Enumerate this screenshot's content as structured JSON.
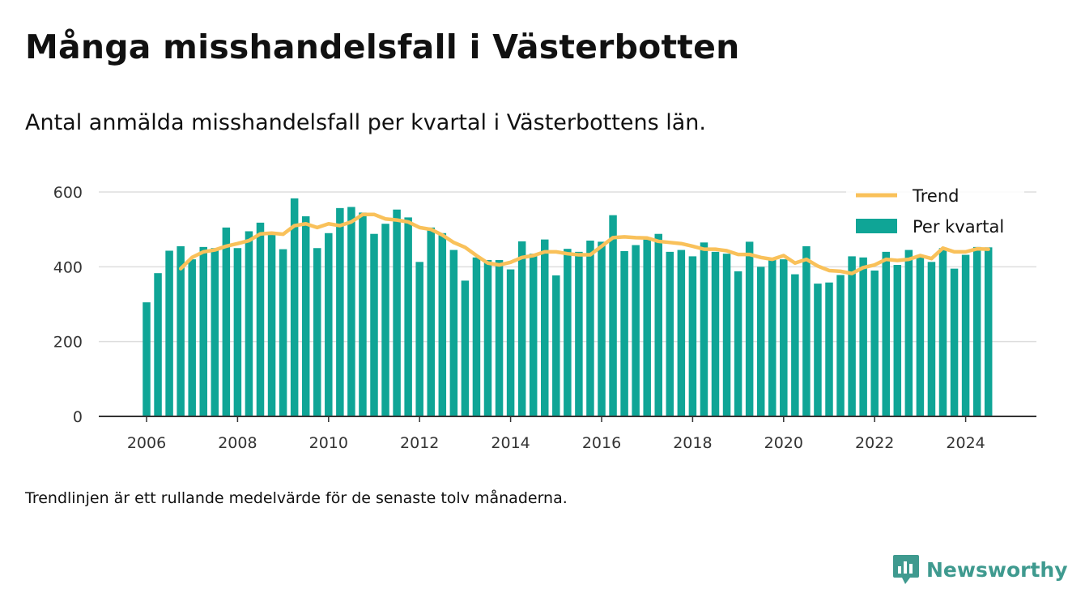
{
  "header": {
    "title": "Många misshandelsfall i Västerbotten",
    "subtitle": "Antal anmälda misshandelsfall per kvartal i Västerbottens län."
  },
  "footer": {
    "note": "Trendlinjen är ett rullande medelvärde för de senaste tolv månaderna."
  },
  "brand": {
    "name": "Newsworthy",
    "icon": "newsworthy-logo-icon",
    "color": "#3f9a8f"
  },
  "colors": {
    "bar": "#0fa596",
    "trend": "#f9c15a",
    "grid": "#dddddd",
    "axis": "#333333"
  },
  "chart_data": {
    "type": "bar",
    "title": "Många misshandelsfall i Västerbotten",
    "subtitle": "Antal anmälda misshandelsfall per kvartal i Västerbottens län.",
    "xlabel": "",
    "ylabel": "",
    "ylim": [
      0,
      600
    ],
    "yticks": [
      0,
      200,
      400,
      600
    ],
    "xticks": [
      "2006",
      "2008",
      "2010",
      "2012",
      "2014",
      "2016",
      "2018",
      "2020",
      "2022",
      "2024"
    ],
    "grid": true,
    "legend_position": "top-right",
    "categories": [
      "2006 Q1",
      "2006 Q2",
      "2006 Q3",
      "2006 Q4",
      "2007 Q1",
      "2007 Q2",
      "2007 Q3",
      "2007 Q4",
      "2008 Q1",
      "2008 Q2",
      "2008 Q3",
      "2008 Q4",
      "2009 Q1",
      "2009 Q2",
      "2009 Q3",
      "2009 Q4",
      "2010 Q1",
      "2010 Q2",
      "2010 Q3",
      "2010 Q4",
      "2011 Q1",
      "2011 Q2",
      "2011 Q3",
      "2011 Q4",
      "2012 Q1",
      "2012 Q2",
      "2012 Q3",
      "2012 Q4",
      "2013 Q1",
      "2013 Q2",
      "2013 Q3",
      "2013 Q4",
      "2014 Q1",
      "2014 Q2",
      "2014 Q3",
      "2014 Q4",
      "2015 Q1",
      "2015 Q2",
      "2015 Q3",
      "2015 Q4",
      "2016 Q1",
      "2016 Q2",
      "2016 Q3",
      "2016 Q4",
      "2017 Q1",
      "2017 Q2",
      "2017 Q3",
      "2017 Q4",
      "2018 Q1",
      "2018 Q2",
      "2018 Q3",
      "2018 Q4",
      "2019 Q1",
      "2019 Q2",
      "2019 Q3",
      "2019 Q4",
      "2020 Q1",
      "2020 Q2",
      "2020 Q3",
      "2020 Q4",
      "2021 Q1",
      "2021 Q2",
      "2021 Q3",
      "2021 Q4",
      "2022 Q1",
      "2022 Q2",
      "2022 Q3",
      "2022 Q4",
      "2023 Q1",
      "2023 Q2",
      "2023 Q3",
      "2023 Q4",
      "2024 Q1",
      "2024 Q2",
      "2024 Q3"
    ],
    "series": [
      {
        "name": "Per kvartal",
        "kind": "bar",
        "values": [
          305,
          383,
          443,
          455,
          420,
          453,
          450,
          505,
          450,
          495,
          518,
          485,
          447,
          583,
          535,
          450,
          490,
          557,
          560,
          545,
          488,
          515,
          553,
          532,
          413,
          505,
          490,
          445,
          363,
          425,
          418,
          418,
          393,
          468,
          435,
          473,
          377,
          448,
          440,
          470,
          467,
          538,
          442,
          458,
          473,
          488,
          440,
          445,
          428,
          465,
          440,
          435,
          388,
          467,
          400,
          420,
          420,
          380,
          455,
          355,
          358,
          378,
          428,
          425,
          390,
          440,
          405,
          445,
          432,
          413,
          450,
          395,
          432,
          453,
          452
        ]
      },
      {
        "name": "Trend",
        "kind": "line",
        "values": [
          null,
          null,
          null,
          395,
          425,
          440,
          445,
          455,
          462,
          470,
          488,
          490,
          487,
          510,
          515,
          505,
          515,
          510,
          520,
          540,
          540,
          528,
          525,
          520,
          505,
          500,
          485,
          465,
          452,
          430,
          410,
          405,
          412,
          425,
          430,
          440,
          440,
          435,
          432,
          432,
          455,
          478,
          480,
          478,
          477,
          468,
          465,
          462,
          455,
          447,
          447,
          443,
          433,
          433,
          425,
          420,
          430,
          410,
          420,
          402,
          390,
          388,
          382,
          398,
          405,
          420,
          417,
          420,
          430,
          422,
          450,
          440,
          440,
          448,
          447
        ]
      }
    ]
  }
}
